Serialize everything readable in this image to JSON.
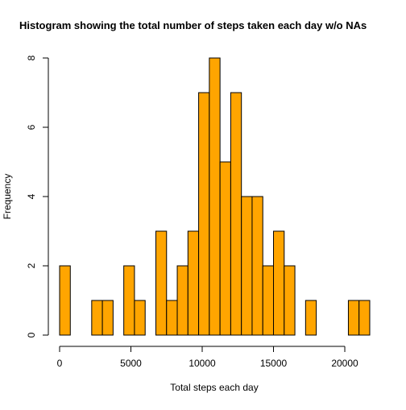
{
  "chart_data": {
    "type": "bar",
    "title": "Histogram showing the total number of steps taken each day w/o NAs",
    "xlabel": "Total steps each day",
    "ylabel": "Frequency",
    "bin_width": 750,
    "bins_start": 0,
    "values": [
      2,
      0,
      0,
      1,
      1,
      0,
      2,
      1,
      0,
      3,
      1,
      2,
      3,
      7,
      8,
      5,
      7,
      4,
      4,
      2,
      3,
      2,
      0,
      1,
      0,
      0,
      0,
      1,
      1
    ],
    "xlim": [
      0,
      21750
    ],
    "ylim": [
      0,
      8
    ],
    "x_ticks": [
      "0",
      "5000",
      "10000",
      "15000",
      "20000"
    ],
    "y_ticks": [
      "0",
      "2",
      "4",
      "6",
      "8"
    ],
    "bar_color": "#FFA500",
    "bar_border_color": "#000000",
    "grid": false,
    "legend": "none"
  }
}
